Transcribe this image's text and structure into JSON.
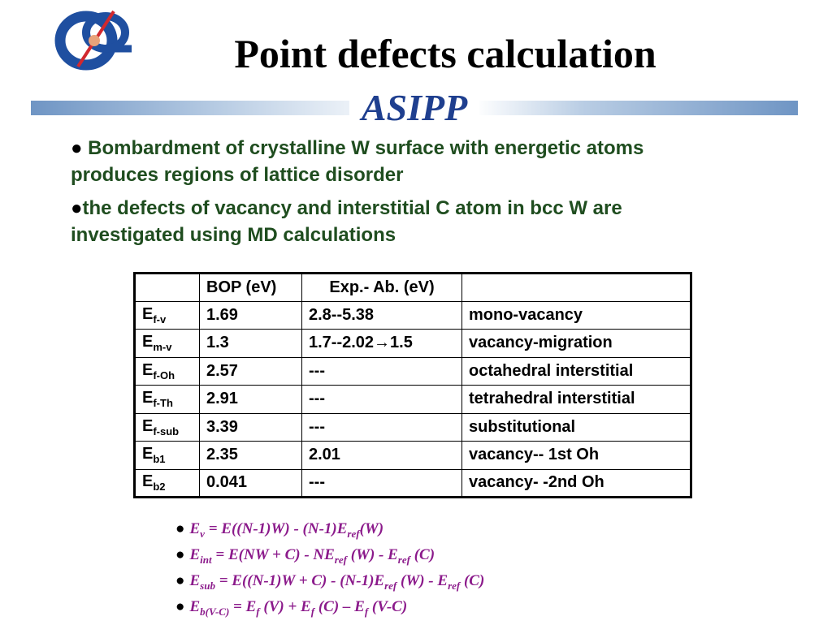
{
  "slide": {
    "title": "Point defects calculation",
    "subtitle": "ASIPP"
  },
  "bullets": [
    "Bombardment of crystalline W surface with energetic atoms produces regions of lattice disorder",
    "the defects of vacancy and interstitial C atom in bcc W are investigated using MD calculations"
  ],
  "bullet_glyph": "●",
  "table": {
    "headers": [
      "",
      "BOP (eV)",
      "Exp.- Ab. (eV)",
      ""
    ],
    "rows": [
      {
        "sym": "E",
        "sub": "f-v",
        "bop": "1.69",
        "exp": "2.8--5.38",
        "desc": "mono-vacancy"
      },
      {
        "sym": "E",
        "sub": "m-v",
        "bop": "1.3",
        "exp": "1.7--2.02→1.5",
        "desc": "vacancy-migration"
      },
      {
        "sym": "E",
        "sub": "f-Oh",
        "bop": "2.57",
        "exp": "---",
        "desc": "octahedral interstitial"
      },
      {
        "sym": "E",
        "sub": "f-Th",
        "bop": "2.91",
        "exp": "---",
        "desc": "tetrahedral interstitial"
      },
      {
        "sym": "E",
        "sub": "f-sub",
        "bop": "3.39",
        "exp": "---",
        "desc": "substitutional"
      },
      {
        "sym": "E",
        "sub": "b1",
        "bop": "2.35",
        "exp": "2.01",
        "desc": "vacancy-- 1st Oh"
      },
      {
        "sym": "E",
        "sub": "b2",
        "bop": "0.041",
        "exp": "---",
        "desc": "vacancy- -2nd Oh"
      }
    ]
  },
  "formulas": {
    "f1": {
      "a": "E",
      "a_sub": "v",
      "b": " = E((N-1)W) - (N-1)E",
      "b_sub": "ref",
      "c": "(W)"
    },
    "f2": {
      "a": "E",
      "a_sub": "int",
      "b": " = E(NW + C) - NE",
      "b_sub": "ref",
      "c": " (W) - E",
      "c_sub": "ref",
      "d": " (C)"
    },
    "f3": {
      "a": "E",
      "a_sub": "sub",
      "b": " = E((N-1)W + C) - (N-1)E",
      "b_sub": "ref",
      "c": " (W) - E",
      "c_sub": "ref",
      "d": " (C)"
    },
    "f4": {
      "a": "E",
      "a_sub": "b(V-C)",
      "b": " = E",
      "b_sub": "f",
      "c": " (V) + E",
      "c_sub": "f",
      "d": " (C) – E",
      "d_sub": "f",
      "e": " (V-C)"
    }
  },
  "colors": {
    "title": "#000000",
    "subtitle": "#1f3f8f",
    "bullet_text": "#1f4d1f",
    "formula_text": "#8b1a8b",
    "bar_dark": "#6f95c4",
    "logo_blue": "#1f4fa0",
    "logo_red": "#d2282e"
  }
}
